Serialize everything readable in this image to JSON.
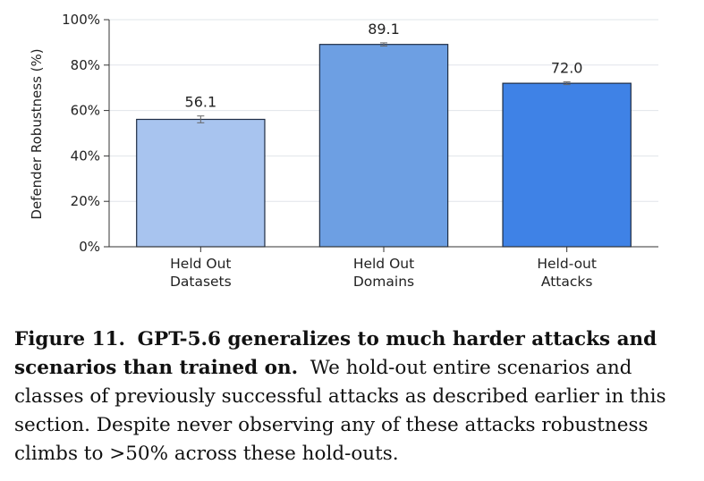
{
  "chart_data": {
    "type": "bar",
    "ylabel": "Defender Robustness (%)",
    "ylim": [
      0,
      100
    ],
    "yticks": [
      0,
      20,
      40,
      60,
      80,
      100
    ],
    "ytick_labels": [
      "0%",
      "20%",
      "40%",
      "60%",
      "80%",
      "100%"
    ],
    "grid": true,
    "categories": [
      [
        "Held Out",
        "Datasets"
      ],
      [
        "Held Out",
        "Domains"
      ],
      [
        "Held-out",
        "Attacks"
      ]
    ],
    "values": [
      56.1,
      89.1,
      72.0
    ],
    "value_labels": [
      "56.1",
      "89.1",
      "72.0"
    ],
    "error": [
      1.5,
      0.7,
      0.6
    ],
    "colors": [
      "#a8c4ef",
      "#6d9fe3",
      "#3f82e6"
    ]
  },
  "caption": {
    "label": "Figure 11.",
    "title": "GPT-5.6 generalizes to much harder attacks and scenarios than trained on.",
    "text": "We hold-out entire scenarios and classes of previously successful attacks as described earlier in this section. Despite never observing any of these attacks robustness climbs to >50% across these hold-outs."
  }
}
